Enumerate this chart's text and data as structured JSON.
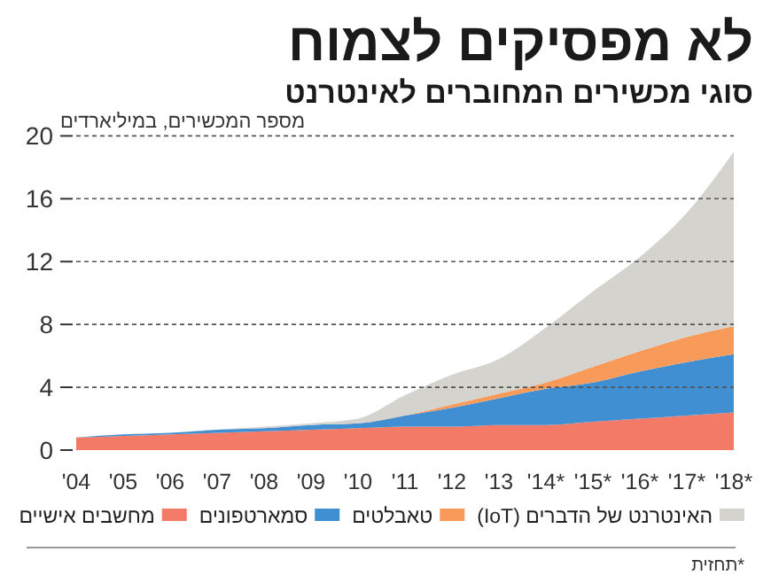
{
  "chart_data": {
    "type": "area",
    "stacked": true,
    "title": "לא מפסיקים לצמוח",
    "subtitle": "סוגי מכשירים המחוברים לאינטרנט",
    "ylabel": "מספר המכשירים, במיליארדים",
    "categories": [
      "'04",
      "'05",
      "'06",
      "'07",
      "'08",
      "'09",
      "'10",
      "'11",
      "'12",
      "'13",
      "'14*",
      "'15*",
      "'16*",
      "'17*",
      "'18*"
    ],
    "series": [
      {
        "name": "מחשבים אישיים",
        "color": "#f47a68",
        "values": [
          0.8,
          0.9,
          1,
          1.1,
          1.2,
          1.3,
          1.4,
          1.5,
          1.5,
          1.6,
          1.6,
          1.8,
          2,
          2.2,
          2.4
        ]
      },
      {
        "name": "סמארטפונים",
        "color": "#3f8fd2",
        "values": [
          0,
          0.1,
          0.1,
          0.2,
          0.2,
          0.3,
          0.3,
          0.7,
          1.2,
          1.7,
          2.3,
          2.5,
          3,
          3.4,
          3.7
        ]
      },
      {
        "name": "טאבלטים",
        "color": "#f89a5a",
        "values": [
          0,
          0,
          0,
          0,
          0,
          0,
          0,
          0,
          0.2,
          0.3,
          0.4,
          1,
          1.3,
          1.6,
          1.8
        ]
      },
      {
        "name": "האינטרנט של הדברים (IoT)",
        "color": "#d4d3ce",
        "values": [
          0,
          0,
          0,
          0,
          0.1,
          0.1,
          0.3,
          1.3,
          1.9,
          2.2,
          3.5,
          4.8,
          6,
          7.9,
          11.1
        ]
      }
    ],
    "ylim": [
      0,
      20
    ],
    "yticks": [
      0,
      4,
      8,
      12,
      16,
      20
    ],
    "grid": "y",
    "legend": "bottom",
    "annotations": [
      "*תחזית"
    ]
  }
}
